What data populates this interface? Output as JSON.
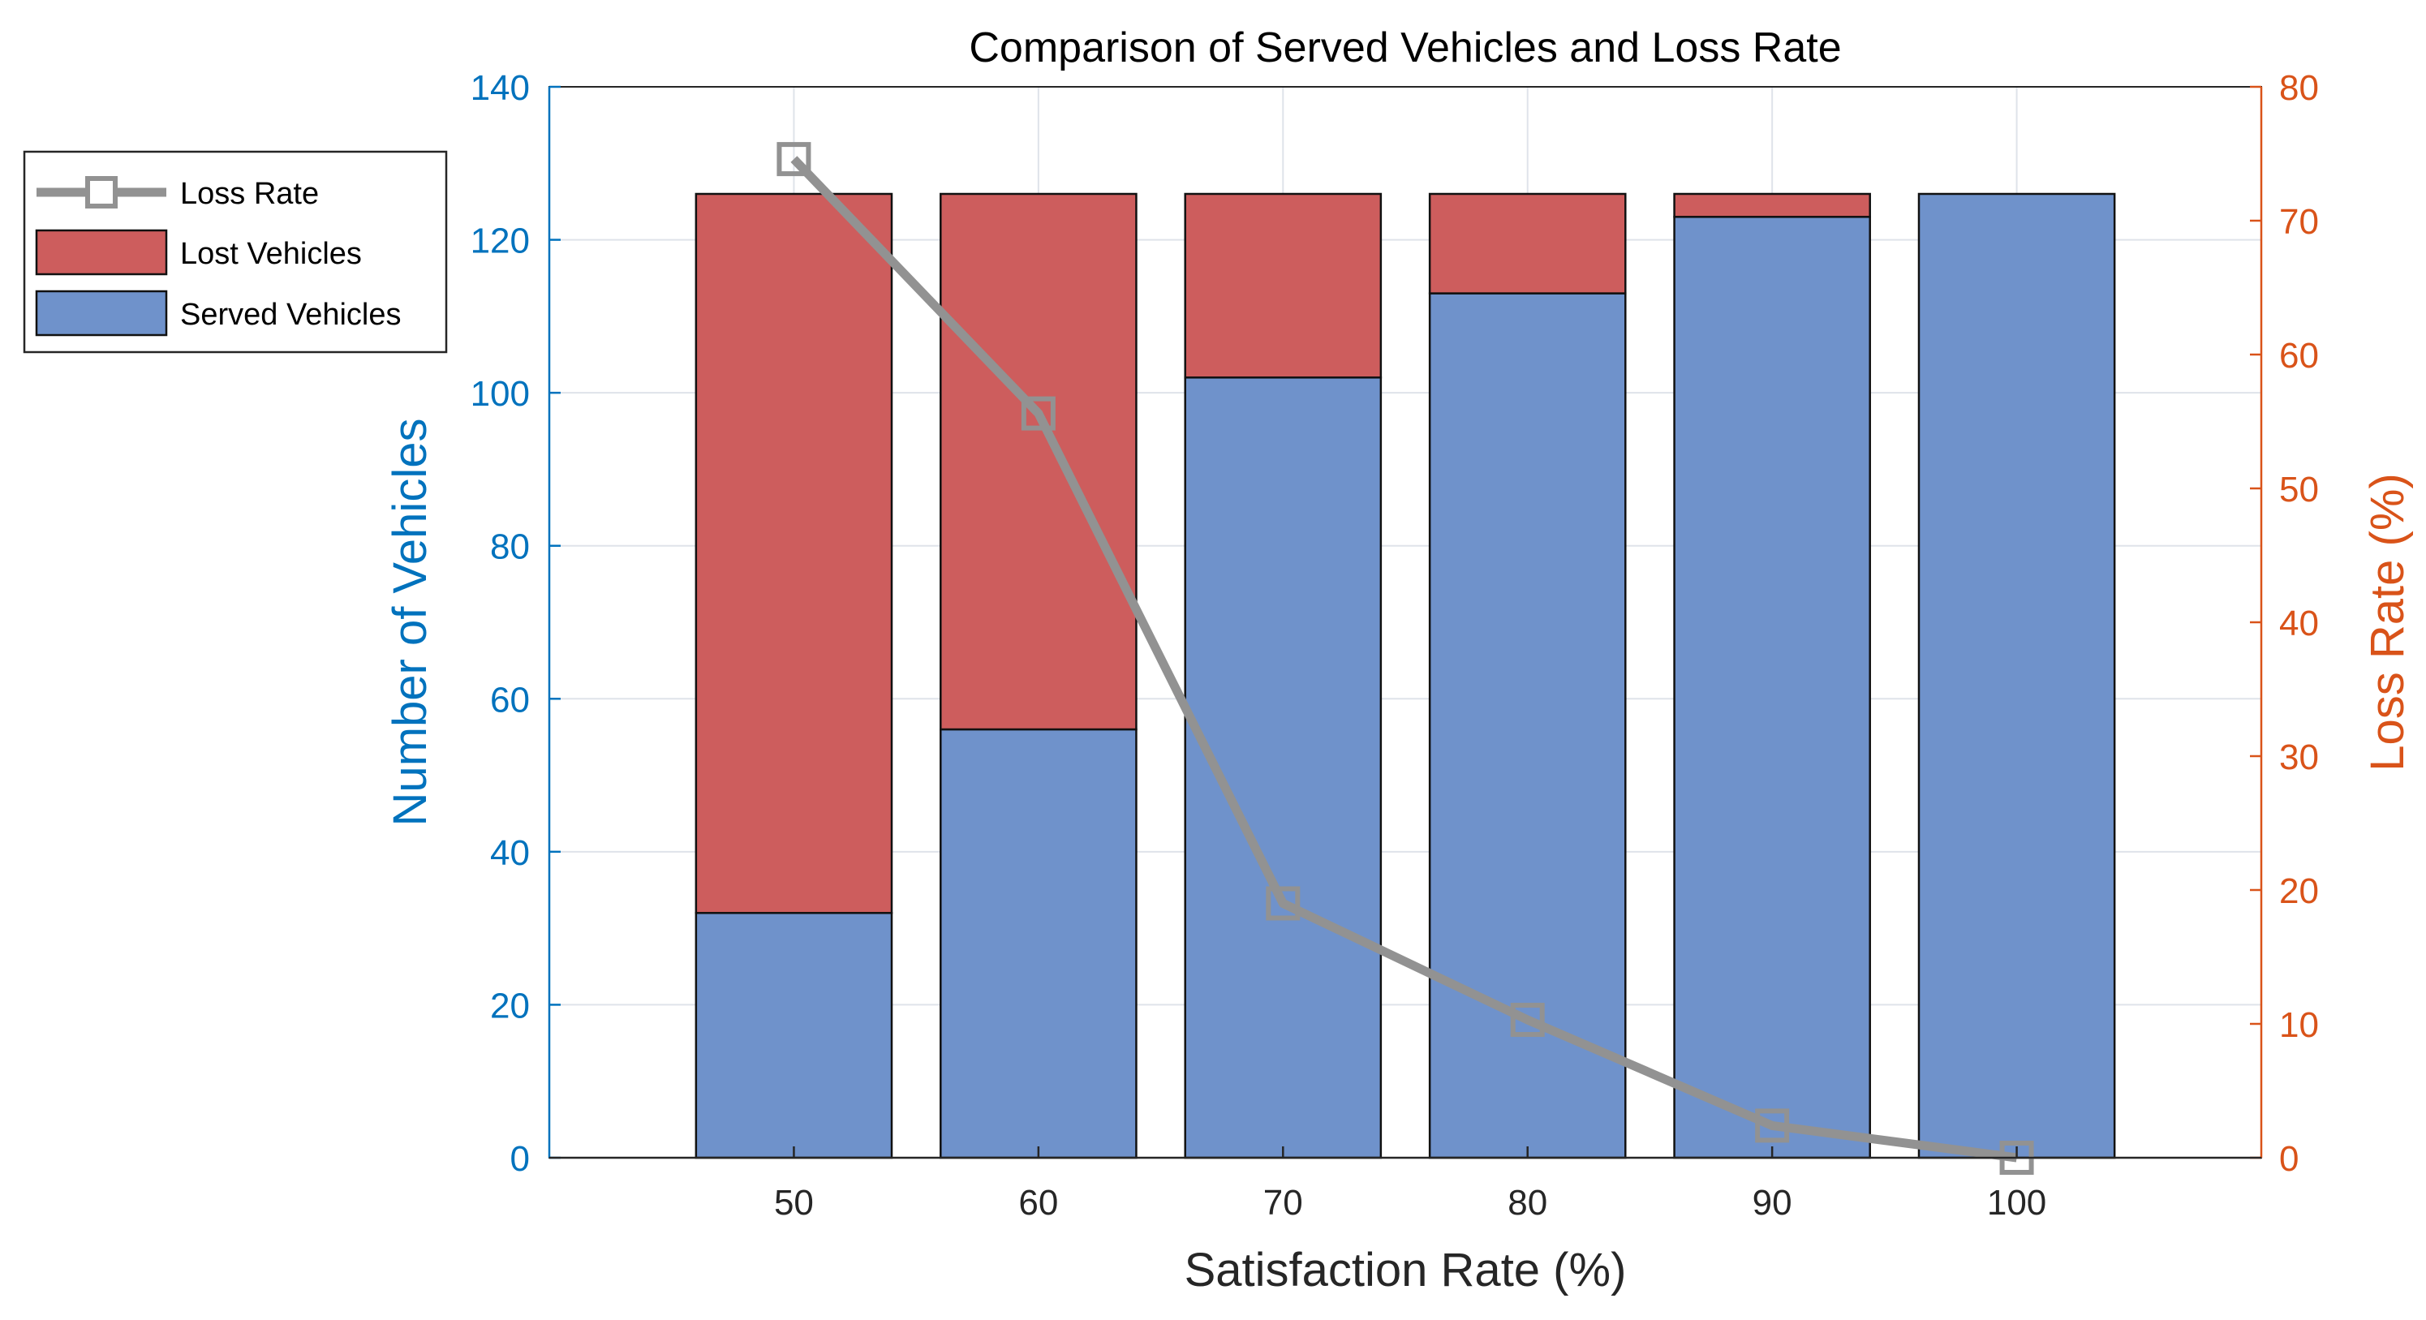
{
  "chart_data": {
    "type": "bar",
    "stacked": true,
    "title": "Comparison of Served Vehicles and Loss Rate",
    "xlabel": "Satisfaction Rate (%)",
    "ylabel": "Number of Vehicles",
    "ylabel_right": "Loss Rate (%)",
    "categories": [
      "50",
      "60",
      "70",
      "80",
      "90",
      "100"
    ],
    "xlim": [
      40,
      110
    ],
    "ylim": [
      0,
      140
    ],
    "ylim_right": [
      0,
      80
    ],
    "yticks": [
      0,
      20,
      40,
      60,
      80,
      100,
      120,
      140
    ],
    "yticks_right": [
      0,
      10,
      20,
      30,
      40,
      50,
      60,
      70,
      80
    ],
    "grid": true,
    "legend_position": "outside-top-left",
    "series": [
      {
        "name": "Served Vehicles",
        "type": "bar",
        "axis": "left",
        "color": "#6f92cb",
        "values": [
          32,
          56,
          102,
          113,
          123,
          126
        ]
      },
      {
        "name": "Lost Vehicles",
        "type": "bar",
        "axis": "left",
        "color": "#cd5d5d",
        "values": [
          94,
          70,
          24,
          13,
          3,
          0
        ]
      },
      {
        "name": "Loss Rate",
        "type": "line",
        "axis": "right",
        "marker": "square",
        "color": "#929292",
        "values": [
          74.6,
          55.6,
          19.0,
          10.3,
          2.4,
          0
        ]
      }
    ],
    "legend_order": [
      "Loss Rate",
      "Lost Vehicles",
      "Served Vehicles"
    ],
    "colors": {
      "left_axis": "#0072bd",
      "right_axis": "#d95319",
      "grid": "#dfe3ea",
      "text": "#262626"
    }
  }
}
